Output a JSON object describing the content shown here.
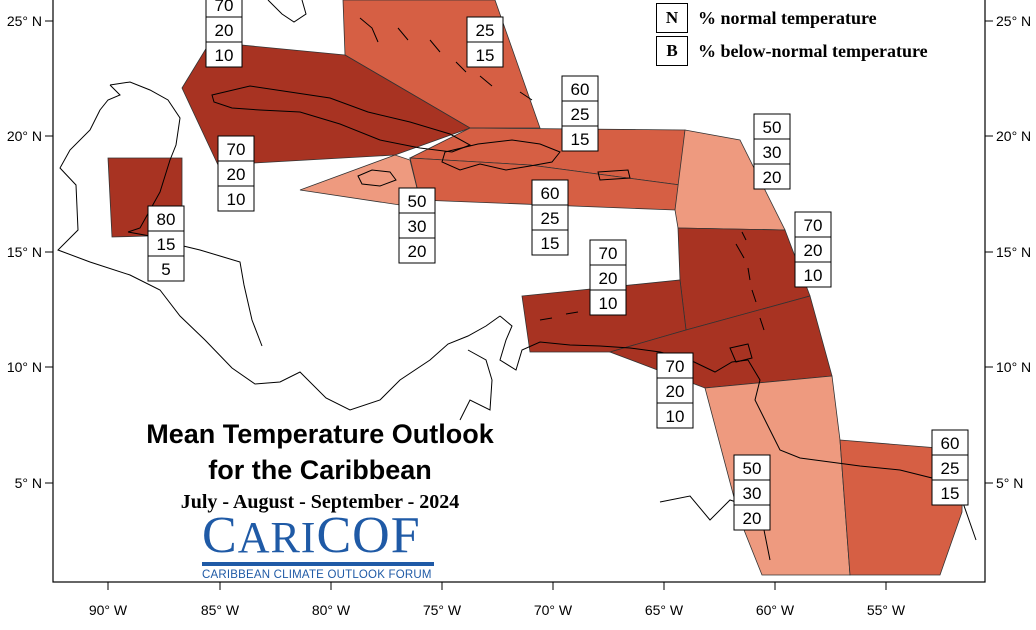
{
  "title": {
    "line1": "Mean Temperature Outlook",
    "line2": "for the Caribbean",
    "period": "July - August - September - 2024"
  },
  "legend": [
    {
      "key": "N",
      "label": "% normal temperature"
    },
    {
      "key": "B",
      "label": "% below-normal temperature"
    }
  ],
  "logo": {
    "c": "C",
    "ari": "ARI",
    "cof": "COF",
    "subtitle": "CARIBBEAN CLIMATE OUTLOOK FORUM",
    "brand_color": "#1f5aa6"
  },
  "axes": {
    "x_ticks": [
      "90° W",
      "85° W",
      "80° W",
      "75° W",
      "70° W",
      "65° W",
      "60° W",
      "55° W"
    ],
    "y_ticks": [
      "25° N",
      "20° N",
      "15° N",
      "10° N",
      "5° N"
    ]
  },
  "colors": {
    "dark": "#a83322",
    "medium": "#d65f44",
    "light": "#ee9a7f"
  },
  "regions": [
    {
      "name": "cuba-west",
      "above": "70",
      "normal": "20",
      "below": "10",
      "shade": "dark"
    },
    {
      "name": "cuba-east",
      "above": "70",
      "normal": "20",
      "below": "10",
      "shade": "dark"
    },
    {
      "name": "bahamas",
      "above": "",
      "normal": "25",
      "below": "15",
      "shade": "medium"
    },
    {
      "name": "belize",
      "above": "80",
      "normal": "15",
      "below": "5",
      "shade": "dark"
    },
    {
      "name": "jamaica",
      "above": "50",
      "normal": "30",
      "below": "20",
      "shade": "light"
    },
    {
      "name": "hispaniola-north",
      "above": "60",
      "normal": "25",
      "below": "15",
      "shade": "medium"
    },
    {
      "name": "hispaniola-south",
      "above": "60",
      "normal": "25",
      "below": "15",
      "shade": "medium"
    },
    {
      "name": "leeward-islands",
      "above": "50",
      "normal": "30",
      "below": "20",
      "shade": "light"
    },
    {
      "name": "windward-islands",
      "above": "70",
      "normal": "20",
      "below": "10",
      "shade": "dark"
    },
    {
      "name": "abc-islands",
      "above": "70",
      "normal": "20",
      "below": "10",
      "shade": "dark"
    },
    {
      "name": "trinidad",
      "above": "70",
      "normal": "20",
      "below": "10",
      "shade": "dark"
    },
    {
      "name": "guyana",
      "above": "50",
      "normal": "30",
      "below": "20",
      "shade": "light"
    },
    {
      "name": "suriname-french-guiana",
      "above": "60",
      "normal": "25",
      "below": "15",
      "shade": "medium"
    }
  ]
}
